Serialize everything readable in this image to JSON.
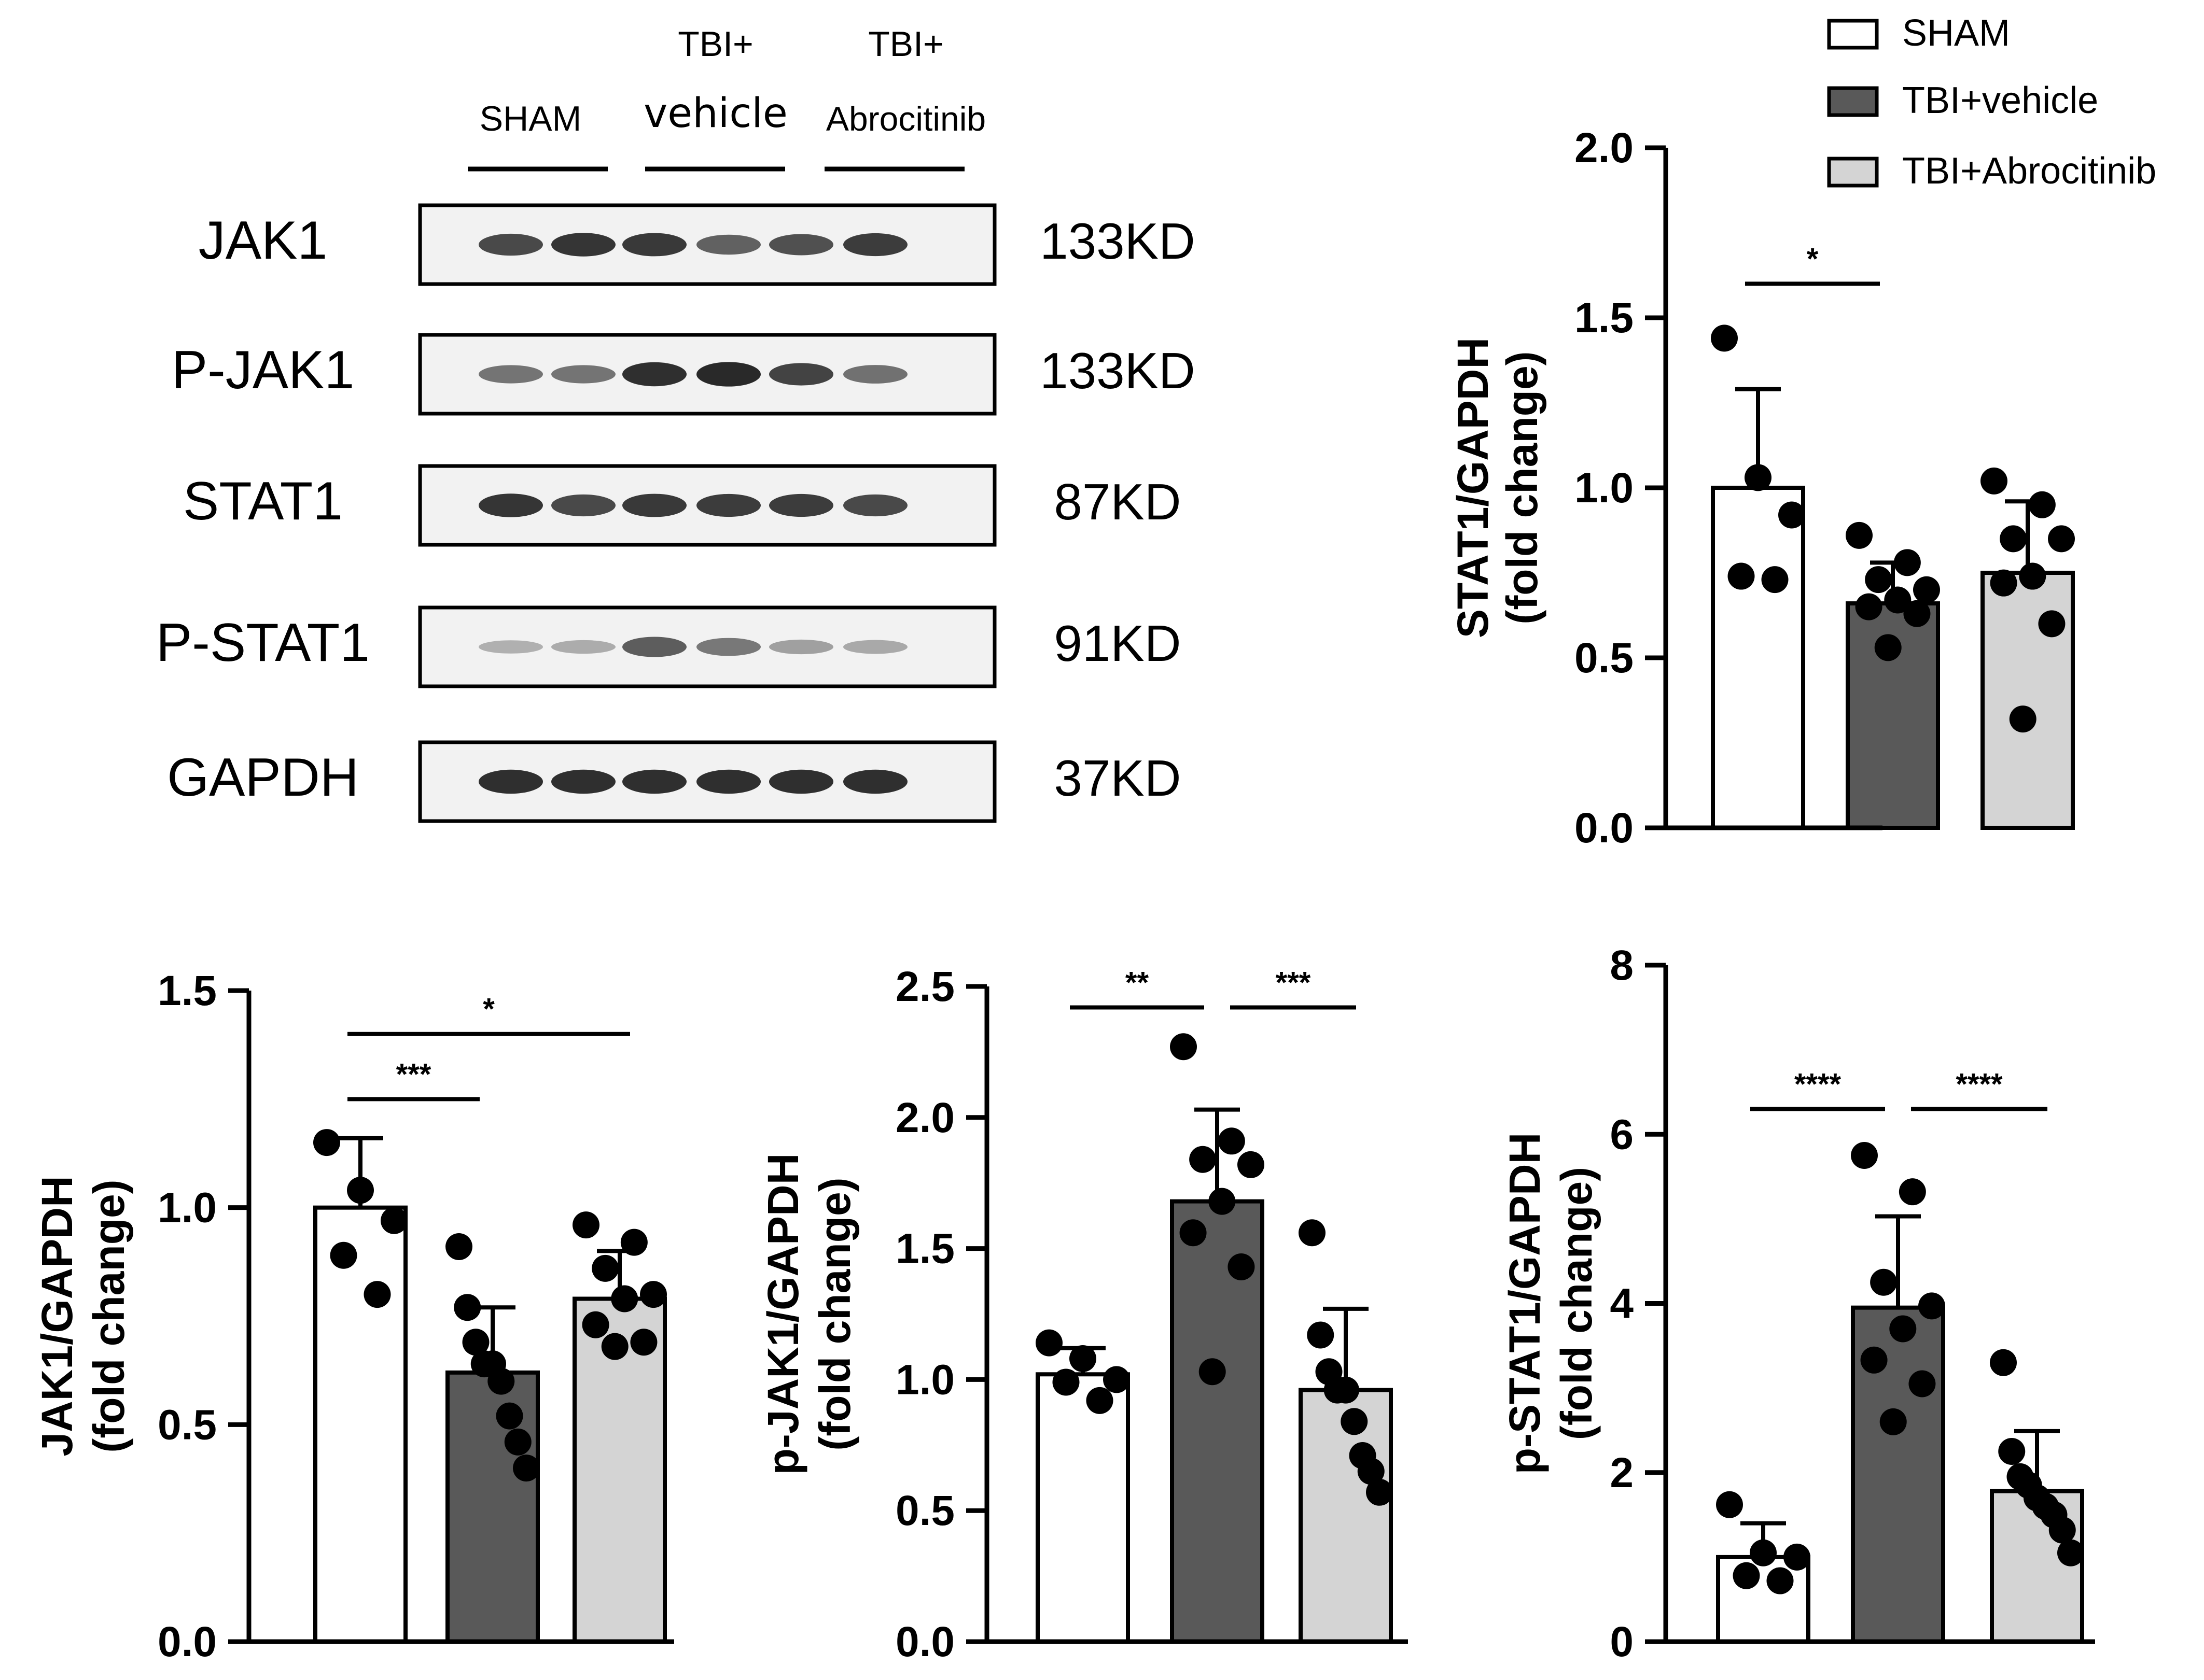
{
  "colors": {
    "sham": "#ffffff",
    "vehicle": "#595959",
    "abrocitinib": "#d4d4d4",
    "ink": "#000000"
  },
  "legend": {
    "entries": [
      {
        "label": "SHAM",
        "color": "#ffffff"
      },
      {
        "label": "TBI+vehicle",
        "color": "#595959"
      },
      {
        "label": "TBI+Abrocitinib",
        "color": "#d4d4d4"
      }
    ]
  },
  "blot": {
    "groups": [
      {
        "line1": "",
        "line2": "SHAM"
      },
      {
        "line1": "TBI+",
        "line2": "vehicle"
      },
      {
        "line1": "TBI+",
        "line2": "Abrocitinib"
      }
    ],
    "rows": [
      {
        "protein": "JAK1",
        "size": "133KD",
        "intensities": [
          0.82,
          0.92,
          0.9,
          0.7,
          0.78,
          0.88
        ]
      },
      {
        "protein": "P-JAK1",
        "size": "133KD",
        "intensities": [
          0.6,
          0.6,
          0.95,
          0.98,
          0.85,
          0.62
        ]
      },
      {
        "protein": "STAT1",
        "size": "87KD",
        "intensities": [
          0.92,
          0.82,
          0.9,
          0.88,
          0.88,
          0.82
        ]
      },
      {
        "protein": "P-STAT1",
        "size": "91KD",
        "intensities": [
          0.3,
          0.32,
          0.72,
          0.58,
          0.38,
          0.34
        ]
      },
      {
        "protein": "GAPDH",
        "size": "37KD",
        "intensities": [
          0.95,
          0.95,
          0.95,
          0.95,
          0.95,
          0.95
        ]
      }
    ]
  },
  "chart_data": [
    {
      "id": "stat1",
      "type": "bar",
      "title": "",
      "xlabel": "",
      "ylabel": [
        "STAT1/GAPDH",
        "(fold change)"
      ],
      "categories": [
        "SHAM",
        "TBI+vehicle",
        "TBI+Abrocitinib"
      ],
      "values": [
        1.0,
        0.66,
        0.75
      ],
      "errors": [
        0.29,
        0.12,
        0.21
      ],
      "ylim": [
        0,
        2.0
      ],
      "yticks": [
        0,
        0.5,
        1.0,
        1.5,
        2.0
      ],
      "ytick_labels": [
        "0.0",
        "0.5",
        "1.0",
        "1.5",
        "2.0"
      ],
      "points": [
        [
          1.44,
          1.03,
          0.92,
          0.74,
          0.73
        ],
        [
          0.86,
          0.78,
          0.73,
          0.7,
          0.67,
          0.65,
          0.63,
          0.53
        ],
        [
          1.02,
          0.95,
          0.85,
          0.85,
          0.74,
          0.72,
          0.6,
          0.32
        ]
      ],
      "significance": [
        {
          "from": 0,
          "to": 1,
          "label": "*",
          "y": 1.6
        }
      ]
    },
    {
      "id": "jak1",
      "type": "bar",
      "title": "",
      "xlabel": "",
      "ylabel": [
        "JAK1/GAPDH",
        "(fold change)"
      ],
      "categories": [
        "SHAM",
        "TBI+vehicle",
        "TBI+Abrocitinib"
      ],
      "values": [
        1.0,
        0.62,
        0.79
      ],
      "errors": [
        0.16,
        0.15,
        0.11
      ],
      "ylim": [
        0,
        1.5
      ],
      "yticks": [
        0,
        0.5,
        1.0,
        1.5
      ],
      "ytick_labels": [
        "0.0",
        "0.5",
        "1.0",
        "1.5"
      ],
      "points": [
        [
          1.15,
          1.04,
          0.97,
          0.89,
          0.8
        ],
        [
          0.91,
          0.77,
          0.69,
          0.64,
          0.64,
          0.6,
          0.52,
          0.46,
          0.4
        ],
        [
          0.96,
          0.92,
          0.86,
          0.8,
          0.79,
          0.73,
          0.69,
          0.68
        ]
      ],
      "significance": [
        {
          "from": 0,
          "to": 1,
          "label": "***",
          "y": 1.25
        },
        {
          "from": 0,
          "to": 2,
          "label": "*",
          "y": 1.4
        }
      ]
    },
    {
      "id": "pjak1",
      "type": "bar",
      "title": "",
      "xlabel": "",
      "ylabel": [
        "p-JAK1/GAPDH",
        "(fold change)"
      ],
      "categories": [
        "SHAM",
        "TBI+vehicle",
        "TBI+Abrocitinib"
      ],
      "values": [
        1.02,
        1.68,
        0.96
      ],
      "errors": [
        0.1,
        0.35,
        0.31
      ],
      "ylim": [
        0,
        2.5
      ],
      "yticks": [
        0,
        0.5,
        1.0,
        1.5,
        2.0,
        2.5
      ],
      "ytick_labels": [
        "0.0",
        "0.5",
        "1.0",
        "1.5",
        "2.0",
        "2.5"
      ],
      "points": [
        [
          1.14,
          1.08,
          1.0,
          0.99,
          0.92
        ],
        [
          2.27,
          1.91,
          1.84,
          1.82,
          1.68,
          1.56,
          1.43,
          1.03
        ],
        [
          1.56,
          1.17,
          1.03,
          0.96,
          0.96,
          0.84,
          0.71,
          0.65,
          0.57
        ]
      ],
      "significance": [
        {
          "from": 0,
          "to": 1,
          "label": "**",
          "y": 2.42
        },
        {
          "from": 1,
          "to": 2,
          "label": "***",
          "y": 2.42
        }
      ]
    },
    {
      "id": "pstat1",
      "type": "bar",
      "title": "",
      "xlabel": "",
      "ylabel": [
        "p-STAT1/GAPDH",
        "(fold change)"
      ],
      "categories": [
        "SHAM",
        "TBI+vehicle",
        "TBI+Abrocitinib"
      ],
      "values": [
        1.0,
        3.95,
        1.78
      ],
      "errors": [
        0.4,
        1.08,
        0.71
      ],
      "ylim": [
        0,
        8
      ],
      "yticks": [
        0,
        2,
        4,
        6,
        8
      ],
      "ytick_labels": [
        "0",
        "2",
        "4",
        "6",
        "8"
      ],
      "points": [
        [
          1.62,
          1.05,
          1.0,
          0.78,
          0.72
        ],
        [
          5.75,
          5.32,
          4.25,
          3.97,
          3.7,
          3.33,
          3.05,
          2.6
        ],
        [
          3.3,
          2.25,
          1.95,
          1.85,
          1.7,
          1.6,
          1.5,
          1.32,
          1.05
        ]
      ],
      "significance": [
        {
          "from": 0,
          "to": 1,
          "label": "****",
          "y": 6.3
        },
        {
          "from": 1,
          "to": 2,
          "label": "****",
          "y": 6.3
        }
      ]
    }
  ]
}
